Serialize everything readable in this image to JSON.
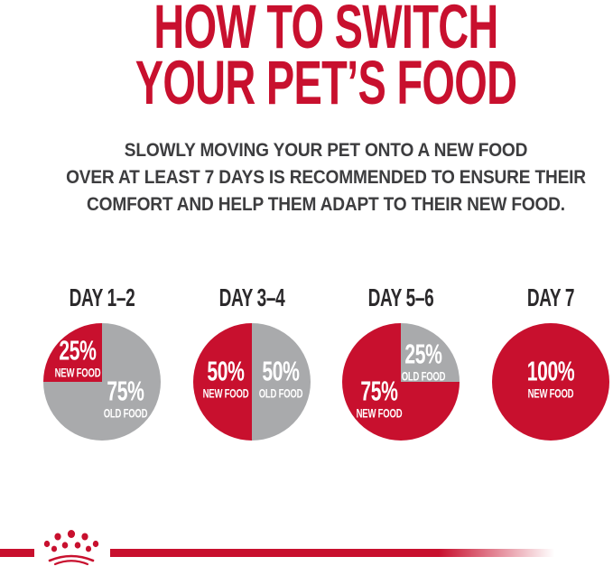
{
  "colors": {
    "brand_red": "#C8102E",
    "pie_gray": "#A9AAAC",
    "text_dark": "#3D3D3F",
    "text_darker": "#2B292B"
  },
  "title": {
    "line1": "HOW TO SWITCH",
    "line2": "YOUR PET’S FOOD"
  },
  "subtitle": {
    "line1": "SLOWLY MOVING YOUR PET ONTO A NEW FOOD",
    "line2": "OVER AT LEAST 7 DAYS IS RECOMMENDED TO ENSURE THEIR",
    "line3": "COMFORT AND HELP THEM ADAPT TO THEIR NEW FOOD."
  },
  "icons": {
    "brand_logo": "royal-canin-crown"
  },
  "chart_data": [
    {
      "type": "pie",
      "title": "DAY 1–2",
      "red_start_deg": 270,
      "slices": [
        {
          "label": "NEW FOOD",
          "value": 25,
          "pct_text": "25%",
          "color": "#C8102E"
        },
        {
          "label": "OLD FOOD",
          "value": 75,
          "pct_text": "75%",
          "color": "#A9AAAC"
        }
      ]
    },
    {
      "type": "pie",
      "title": "DAY 3–4",
      "red_start_deg": 180,
      "slices": [
        {
          "label": "NEW FOOD",
          "value": 50,
          "pct_text": "50%",
          "color": "#C8102E"
        },
        {
          "label": "OLD FOOD",
          "value": 50,
          "pct_text": "50%",
          "color": "#A9AAAC"
        }
      ]
    },
    {
      "type": "pie",
      "title": "DAY 5–6",
      "red_start_deg": 90,
      "slices": [
        {
          "label": "NEW FOOD",
          "value": 75,
          "pct_text": "75%",
          "color": "#C8102E"
        },
        {
          "label": "OLD FOOD",
          "value": 25,
          "pct_text": "25%",
          "color": "#A9AAAC"
        }
      ]
    },
    {
      "type": "pie",
      "title": "DAY 7",
      "red_start_deg": 0,
      "slices": [
        {
          "label": "NEW FOOD",
          "value": 100,
          "pct_text": "100%",
          "color": "#C8102E"
        }
      ]
    }
  ]
}
